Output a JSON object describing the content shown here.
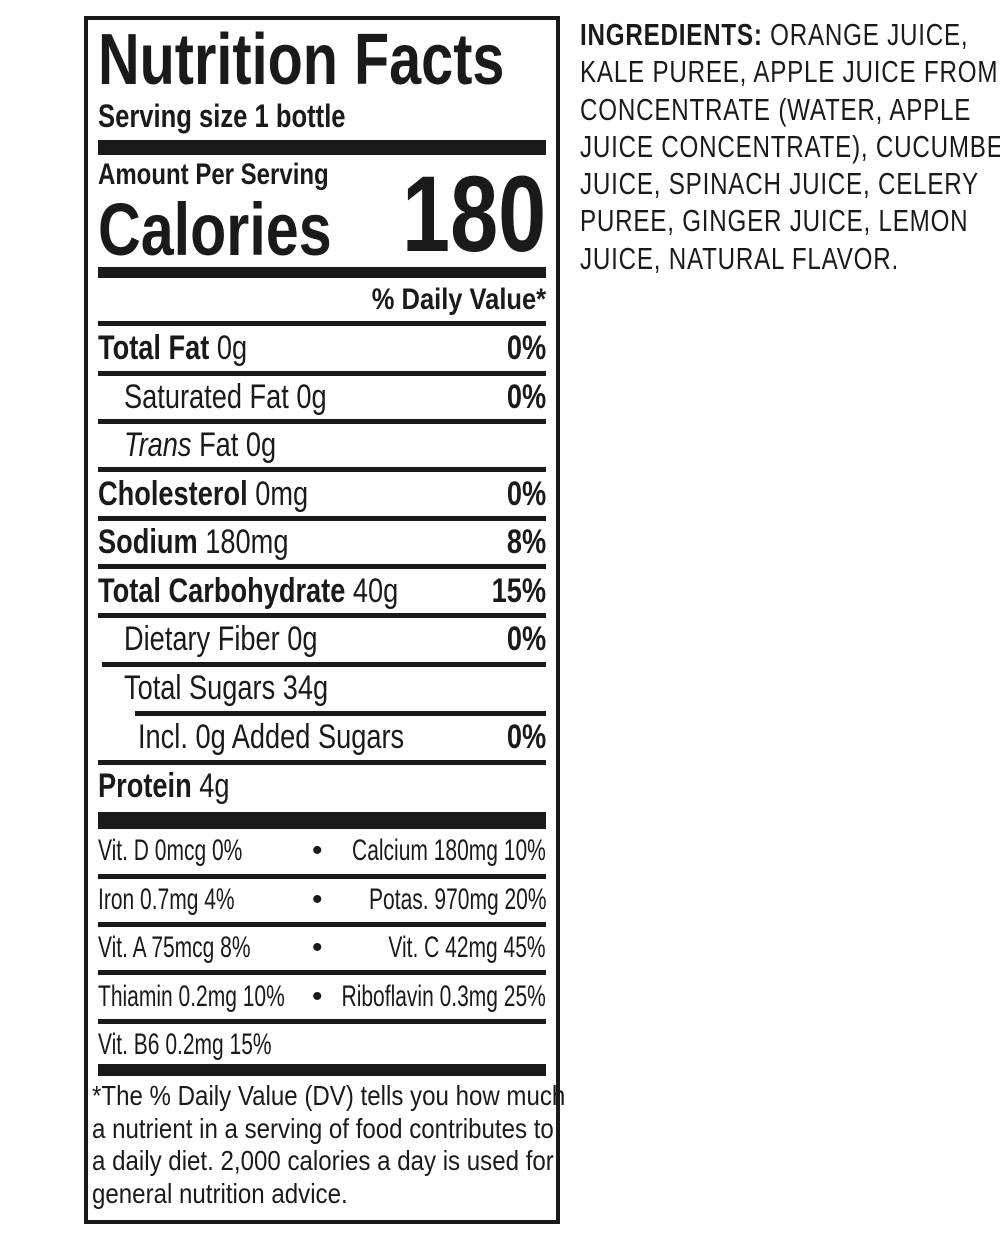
{
  "label": {
    "title": "Nutrition Facts",
    "serving_size": "Serving size 1 bottle",
    "amount_per_serving": "Amount Per Serving",
    "calories_label": "Calories",
    "calories_value": "180",
    "daily_value_header": "% Daily Value*",
    "nutrients": [
      {
        "name": "Total Fat",
        "amount": "0g",
        "dv": "0%"
      },
      {
        "name": "Saturated Fat 0g",
        "dv": "0%"
      },
      {
        "name_italic": "Trans",
        "name": " Fat 0g"
      },
      {
        "name": "Cholesterol",
        "amount": "0mg",
        "dv": "0%"
      },
      {
        "name": "Sodium",
        "amount": "180mg",
        "dv": "8%"
      },
      {
        "name": "Total Carbohydrate",
        "amount": "40g",
        "dv": "15%"
      },
      {
        "name": "Dietary Fiber 0g",
        "dv": "0%"
      },
      {
        "name": "Total Sugars 34g"
      },
      {
        "name": "Incl. 0g Added Sugars",
        "dv": "0%"
      },
      {
        "name": "Protein",
        "amount": "4g"
      }
    ],
    "vitamins": [
      {
        "left": "Vit. D 0mcg 0%",
        "right": "Calcium 180mg 10%"
      },
      {
        "left": "Iron 0.7mg 4%",
        "right": "Potas. 970mg 20%"
      },
      {
        "left": "Vit. A 75mcg 8%",
        "right": "Vit. C 42mg 45%"
      },
      {
        "left": "Thiamin 0.2mg 10%",
        "right": "Riboflavin 0.3mg 25%"
      },
      {
        "left": "Vit. B6 0.2mg 15%"
      }
    ],
    "bullet": "•",
    "footnote_lines": [
      "*The % Daily Value (DV) tells you how much",
      "a nutrient in a serving of food contributes to",
      "a daily diet. 2,000 calories a day is used for",
      "general nutrition advice."
    ]
  },
  "ingredients": {
    "heading": "INGREDIENTS:",
    "lines": [
      " ORANGE JUICE,",
      "KALE PUREE, APPLE JUICE FROM",
      "CONCENTRATE (WATER, APPLE",
      "JUICE CONCENTRATE), CUCUMBER",
      "JUICE, SPINACH JUICE, CELERY",
      "PUREE, GINGER JUICE, LEMON",
      "JUICE, NATURAL FLAVOR."
    ]
  }
}
